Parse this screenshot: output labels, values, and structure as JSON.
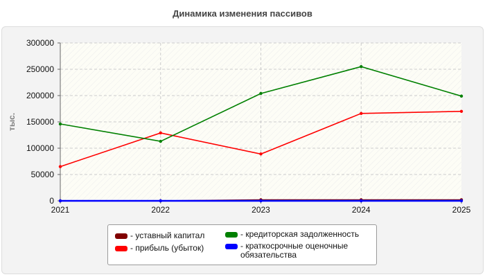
{
  "chart_data": {
    "type": "line",
    "title": "Динамика изменения пассивов",
    "ylabel": "тыс.",
    "xlabel": "",
    "x": [
      "2021",
      "2022",
      "2023",
      "2024",
      "2025"
    ],
    "ylim": [
      0,
      300000
    ],
    "yticks": [
      0,
      50000,
      100000,
      150000,
      200000,
      250000,
      300000
    ],
    "grid": true,
    "legend_position": "bottom",
    "series": [
      {
        "name": "- уставный капитал",
        "color": "#800000",
        "values": [
          0,
          0,
          2000,
          2000,
          2000
        ]
      },
      {
        "name": "- прибыль (убыток)",
        "color": "#ff0000",
        "values": [
          65000,
          129000,
          89000,
          166000,
          170000
        ]
      },
      {
        "name": "- кредиторская задолженность",
        "color": "#008000",
        "values": [
          146000,
          113000,
          204000,
          255000,
          199000
        ]
      },
      {
        "name": "- краткосрочные оценочные обязательства",
        "color": "#0000ff",
        "values": [
          0,
          0,
          0,
          0,
          0
        ]
      }
    ]
  }
}
